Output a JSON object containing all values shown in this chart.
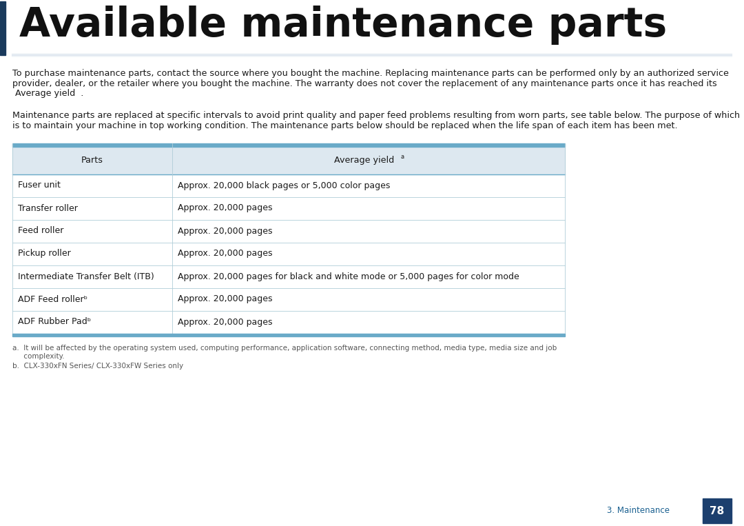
{
  "title": "Available maintenance parts",
  "title_color": "#111111",
  "title_fontsize": 42,
  "accent_bar_color": "#1a3a5c",
  "separator_line_color": "#c8d8e8",
  "body_text_color": "#1a1a1a",
  "body_fontsize": 9.2,
  "paragraph1_line1": "To purchase maintenance parts, contact the source where you bought the machine. Replacing maintenance parts can be performed only by an authorized service",
  "paragraph1_line2": "provider, dealer, or the retailer where you bought the machine. The warranty does not cover the replacement of any maintenance parts once it has reached its",
  "paragraph1_line3": " Average yield  .",
  "paragraph2_line1": "Maintenance parts are replaced at specific intervals to avoid print quality and paper feed problems resulting from worn parts, see table below. The purpose of which",
  "paragraph2_line2": "is to maintain your machine in top working condition. The maintenance parts below should be replaced when the life span of each item has been met.",
  "table_header_bg": "#dde8f0",
  "table_header_border_top": "#6aaac8",
  "table_row_bg_white": "#ffffff",
  "table_border_color": "#b0cdd8",
  "table_col1_header": "Parts",
  "table_col2_header": "Average yield",
  "table_col2_header_superscript": "a",
  "table_rows": [
    [
      "Fuser unit",
      "Approx. 20,000 black pages or 5,000 color pages"
    ],
    [
      "Transfer roller",
      "Approx. 20,000 pages"
    ],
    [
      "Feed roller",
      "Approx. 20,000 pages"
    ],
    [
      "Pickup roller",
      "Approx. 20,000 pages"
    ],
    [
      "Intermediate Transfer Belt (ITB)",
      "Approx. 20,000 pages for black and white mode or 5,000 pages for color mode"
    ],
    [
      "ADF Feed rollerᵇ",
      "Approx. 20,000 pages"
    ],
    [
      "ADF Rubber Padᵇ",
      "Approx. 20,000 pages"
    ]
  ],
  "footnote_a_line1": "a.  It will be affected by the operating system used, computing performance, application software, connecting method, media type, media size and job",
  "footnote_a_line2": "     complexity.",
  "footnote_b": "b.  CLX-330xFN Series/ CLX-330xFW Series only",
  "footnote_color": "#555555",
  "footnote_fontsize": 7.5,
  "footer_text": "3. Maintenance",
  "footer_page": "78",
  "footer_text_color": "#1a6090",
  "footer_bg_color": "#1c3f6e",
  "footer_page_color": "#ffffff",
  "background_color": "#ffffff"
}
